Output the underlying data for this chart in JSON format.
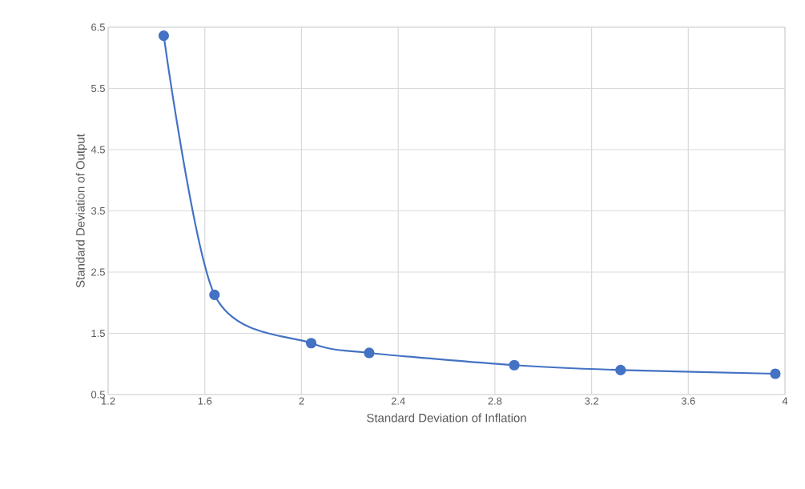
{
  "chart_data": {
    "type": "line",
    "xlabel": "Standard Deviation of Inflation",
    "ylabel": "Standard Deviation of  Output",
    "x": [
      1.43,
      1.64,
      2.04,
      2.28,
      2.88,
      3.32,
      3.96
    ],
    "values": [
      6.36,
      2.13,
      1.34,
      1.18,
      0.98,
      0.9,
      0.84
    ],
    "color": "#4472c4",
    "marker": "circle",
    "grid": true,
    "line_style": "solid",
    "xlim": [
      1.2,
      4
    ],
    "ylim": [
      0.5,
      6.5
    ],
    "xticks": [
      1.2,
      1.6,
      2,
      2.4,
      2.8,
      3.2,
      3.6,
      4
    ],
    "yticks": [
      0.5,
      1.5,
      2.5,
      3.5,
      4.5,
      5.5,
      6.5
    ]
  }
}
